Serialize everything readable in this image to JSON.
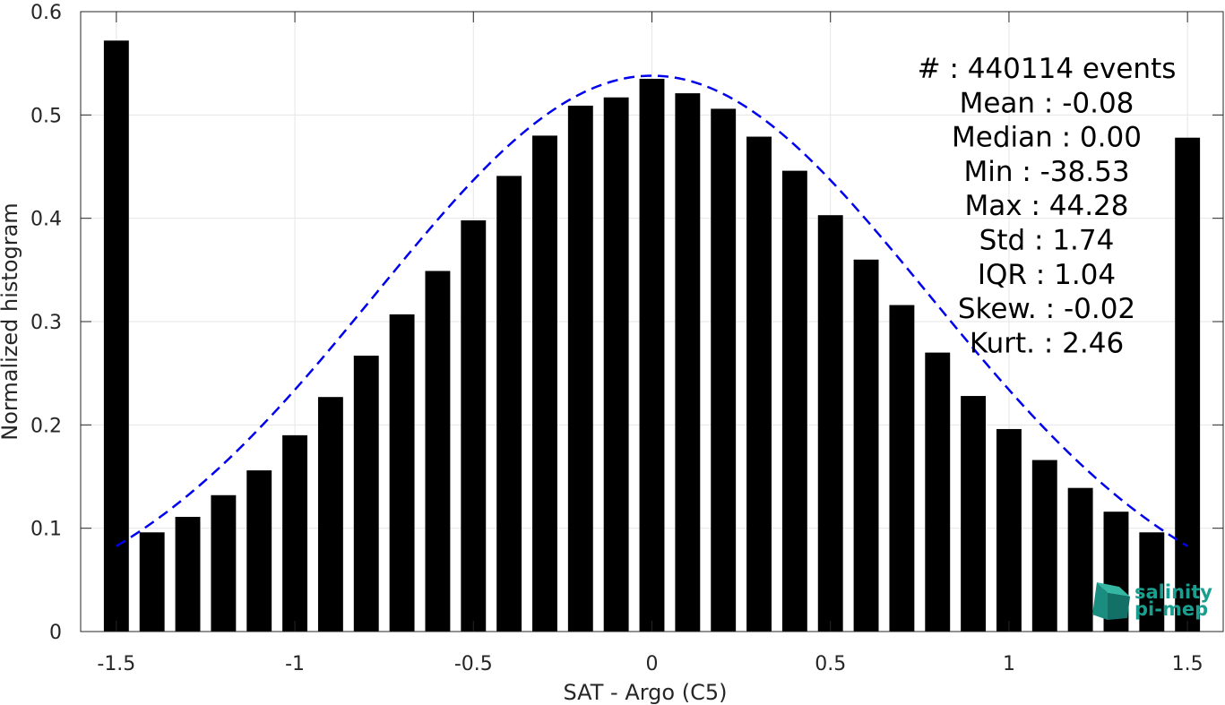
{
  "chart_data": {
    "type": "bar",
    "title": "",
    "xlabel": "SAT - Argo (C5)",
    "ylabel": "Normalized histogram",
    "xlim": [
      -1.6,
      1.6
    ],
    "ylim": [
      0,
      0.6
    ],
    "grid": true,
    "x_ticks": [
      "-1.5",
      "-1",
      "-0.5",
      "0",
      "0.5",
      "1",
      "1.5"
    ],
    "x_tick_values": [
      -1.5,
      -1,
      -0.5,
      0,
      0.5,
      1,
      1.5
    ],
    "y_ticks": [
      "0",
      "0.1",
      "0.2",
      "0.3",
      "0.4",
      "0.5",
      "0.6"
    ],
    "y_tick_values": [
      0,
      0.1,
      0.2,
      0.3,
      0.4,
      0.5,
      0.6
    ],
    "bar_width": 0.07,
    "bar_color": "#000000",
    "x": [
      -1.5,
      -1.4,
      -1.3,
      -1.2,
      -1.1,
      -1.0,
      -0.9,
      -0.8,
      -0.7,
      -0.6,
      -0.5,
      -0.4,
      -0.3,
      -0.2,
      -0.1,
      0.0,
      0.1,
      0.2,
      0.3,
      0.4,
      0.5,
      0.6,
      0.7,
      0.8,
      0.9,
      1.0,
      1.1,
      1.2,
      1.3,
      1.4,
      1.5
    ],
    "values": [
      0.572,
      0.096,
      0.111,
      0.132,
      0.156,
      0.19,
      0.227,
      0.267,
      0.307,
      0.349,
      0.398,
      0.441,
      0.48,
      0.509,
      0.517,
      0.535,
      0.521,
      0.506,
      0.479,
      0.446,
      0.403,
      0.36,
      0.316,
      0.27,
      0.228,
      0.196,
      0.166,
      0.139,
      0.116,
      0.096,
      0.478
    ],
    "fit_curve": {
      "type": "gaussian",
      "mean": 0.0,
      "sigma": 0.775,
      "amplitude": 0.538,
      "x_range": [
        -1.5,
        1.5
      ],
      "color": "#0000ee",
      "style": "dashed"
    },
    "annotation_lines": [
      "#  : 440114 events",
      "Mean : -0.08",
      "Median : 0.00",
      "Min : -38.53",
      "Max : 44.28",
      "Std : 1.74",
      "IQR : 1.04",
      "Skew. : -0.02",
      "Kurt. : 2.46"
    ],
    "logo": {
      "line1": "salinity",
      "line2": "pi-mep",
      "color": "#1a9e8f"
    }
  }
}
